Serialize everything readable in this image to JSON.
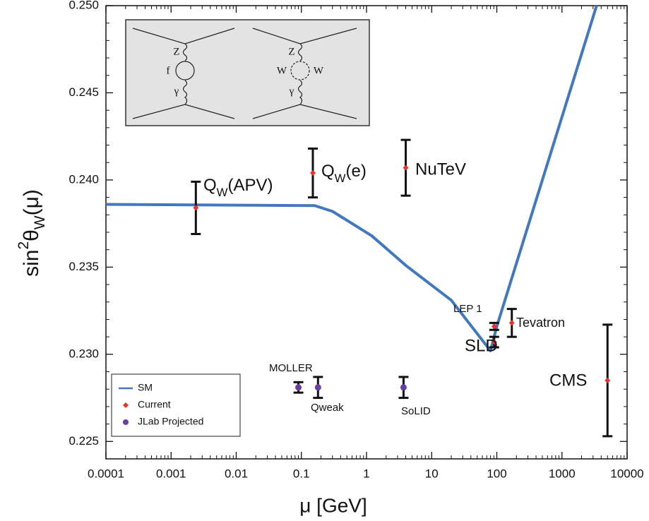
{
  "chart_data": {
    "type": "scatter",
    "xlabel": "μ [GeV]",
    "ylabel": [
      {
        "t": "sin"
      },
      {
        "t": "2",
        "shift": "super"
      },
      {
        "t": "θ"
      },
      {
        "t": "W",
        "shift": "sub"
      },
      {
        "t": "(μ)"
      }
    ],
    "xlim": [
      0.0001,
      10000
    ],
    "xticks": [
      0.0001,
      0.001,
      0.01,
      0.1,
      1,
      10,
      100,
      1000,
      10000
    ],
    "xscale": "log",
    "ylim": [
      0.224,
      0.25
    ],
    "yticks": [
      0.225,
      {
        "value": 0.23,
        "label": "0.230"
      },
      0.235,
      {
        "value": 0.24,
        "label": "0.240"
      },
      0.245,
      {
        "value": 0.25,
        "label": "0.250"
      }
    ],
    "legend": "lower left",
    "inset_labels": [
      "Z",
      "f",
      "γ",
      "Z",
      "W",
      "W",
      "γ"
    ],
    "series": [
      {
        "name": "SM",
        "type": "line",
        "color": "#4178be",
        "x": [
          0.0001,
          0.16,
          0.3,
          1.2,
          4,
          20,
          80,
          100,
          3400
        ],
        "values": [
          0.2386,
          0.23853,
          0.2382,
          0.2368,
          0.2351,
          0.2331,
          0.2302,
          0.2316,
          0.25
        ]
      },
      {
        "name": "Current",
        "type": "errorbar",
        "color": "#e8322a",
        "marker": "diamond",
        "x": [
          0.0024,
          0.15,
          4.0,
          91.2,
          91.2,
          170,
          5000
        ],
        "values": [
          0.2384,
          0.2404,
          0.2407,
          0.2316,
          0.2307,
          0.2318,
          0.2285
        ],
        "errors": [
          0.0015,
          0.0014,
          0.0016,
          0.0002,
          0.0003,
          0.0008,
          0.0032
        ],
        "labels": [
          [
            {
              "t": "Q"
            },
            {
              "t": "W",
              "shift": "sub"
            },
            {
              "t": "(APV)"
            }
          ],
          [
            {
              "t": "Q"
            },
            {
              "t": "W",
              "shift": "sub"
            },
            {
              "t": "(e)"
            }
          ],
          "NuTeV",
          "LEP 1",
          "SLD",
          "Tevatron",
          "CMS"
        ]
      },
      {
        "name": "JLab Projected",
        "type": "errorbar",
        "color": "#6b3fa0",
        "marker": "circle",
        "x": [
          0.09,
          0.18,
          3.7
        ],
        "values": [
          0.2281,
          0.2281,
          0.2281
        ],
        "errors": [
          0.0003,
          0.0006,
          0.0006
        ],
        "labels": [
          "MOLLER",
          "Qweak",
          "SoLID"
        ]
      }
    ]
  }
}
